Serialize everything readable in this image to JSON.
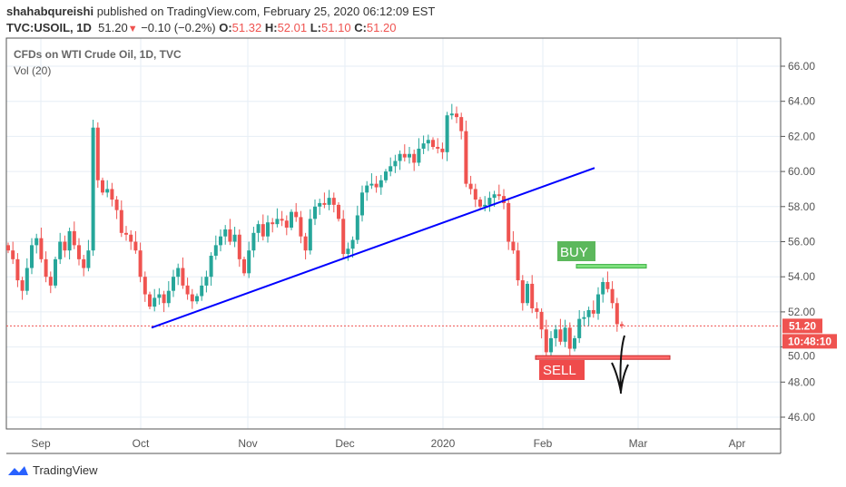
{
  "header": {
    "author": "shahabqureishi",
    "published": "published on TradingView.com, February 25, 2020 06:12:09 EST",
    "symbol": "TVC:USOIL, 1D",
    "last": "51.20",
    "change": "−0.10 (−0.2%)",
    "o_label": "O:",
    "o": "51.32",
    "h_label": "H:",
    "h": "52.01",
    "l_label": "L:",
    "l": "51.10",
    "c_label": "C:",
    "c": "51.20"
  },
  "legend": {
    "title": "CFDs on WTI Crude Oil, 1D, TVC",
    "volume": "Vol (20)"
  },
  "annotations": {
    "buy": "BUY",
    "sell": "SELL"
  },
  "price_label": "51.20",
  "countdown": "10:48:10",
  "footer": {
    "brand": "TradingView"
  },
  "colors": {
    "up": "#26a69a",
    "down": "#ef5350",
    "trend": "#0000ff",
    "buy": "#5cb85c",
    "sell": "#ef4b4b"
  },
  "chart_data": {
    "type": "candlestick",
    "title": "CFDs on WTI Crude Oil, 1D, TVC",
    "ylim": [
      45,
      67
    ],
    "yticks": [
      "46.00",
      "48.00",
      "50.00",
      "52.00",
      "54.00",
      "56.00",
      "58.00",
      "60.00",
      "62.00",
      "64.00",
      "66.00"
    ],
    "xticks": [
      "Sep",
      "Oct",
      "Nov",
      "Dec",
      "2020",
      "Feb",
      "Mar",
      "Apr"
    ],
    "closes": [
      55.5,
      55,
      53.8,
      53.2,
      54.5,
      55.8,
      56.2,
      55,
      54,
      53.5,
      55,
      56,
      55.5,
      56.6,
      55.8,
      55,
      54.5,
      55.5,
      62.5,
      59.5,
      58.8,
      59,
      58.4,
      57.8,
      56.5,
      56.4,
      56,
      55.5,
      54,
      53,
      52.3,
      52.8,
      53,
      52.5,
      53.2,
      54,
      54.5,
      53.5,
      53,
      52.6,
      52.9,
      53.5,
      54,
      55.2,
      55.8,
      56.3,
      56.7,
      56,
      56.4,
      55,
      54.2,
      55.5,
      56.5,
      57,
      56.3,
      57.1,
      57,
      57.3,
      57.2,
      56.8,
      57.7,
      57.4,
      56.3,
      55.5,
      57.3,
      58,
      58.2,
      58.1,
      58.5,
      58.1,
      57.3,
      55.3,
      55.6,
      56.1,
      57.5,
      58.8,
      59.2,
      59.3,
      59.1,
      59.5,
      60,
      60.3,
      60.6,
      61,
      60.8,
      61,
      60.5,
      61.3,
      61.6,
      61.8,
      61.4,
      61.3,
      61.1,
      63.2,
      63.3,
      63.1,
      62.3,
      59.3,
      59,
      58.4,
      58,
      58.1,
      58.5,
      58.7,
      58.6,
      58.2,
      56,
      55.5,
      53.8,
      52.5,
      53.6,
      52.2,
      52,
      51,
      49.7,
      50.5,
      51,
      50.3,
      51.1,
      49.9,
      50.5,
      51.6,
      51.7,
      52.1,
      51.9,
      53,
      53.7,
      53.3,
      52.5,
      51.3,
      51.2
    ],
    "trendline": {
      "from": 51.1,
      "to": 60.2
    },
    "buy_level": 54.6,
    "sell_level": 49.4,
    "last": 51.2
  }
}
